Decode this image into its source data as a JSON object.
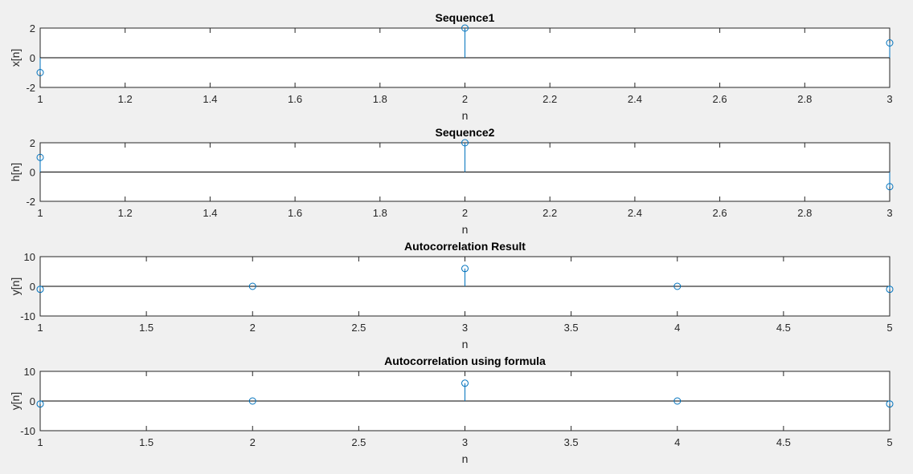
{
  "chart_data": [
    {
      "type": "stem",
      "title": "Sequence1",
      "xlabel": "n",
      "ylabel": "x[n]",
      "xlim": [
        1,
        3
      ],
      "ylim": [
        -2,
        2
      ],
      "xticks": [
        1,
        1.2,
        1.4,
        1.6,
        1.8,
        2,
        2.2,
        2.4,
        2.6,
        2.8,
        3
      ],
      "xtick_labels": [
        "1",
        "1.2",
        "1.4",
        "1.6",
        "1.8",
        "2",
        "2.2",
        "2.4",
        "2.6",
        "2.8",
        "3"
      ],
      "yticks": [
        -2,
        0,
        2
      ],
      "ytick_labels": [
        "-2",
        "0",
        "2"
      ],
      "x": [
        1,
        2,
        3
      ],
      "y": [
        -1,
        2,
        1
      ]
    },
    {
      "type": "stem",
      "title": "Sequence2",
      "xlabel": "n",
      "ylabel": "h[n]",
      "xlim": [
        1,
        3
      ],
      "ylim": [
        -2,
        2
      ],
      "xticks": [
        1,
        1.2,
        1.4,
        1.6,
        1.8,
        2,
        2.2,
        2.4,
        2.6,
        2.8,
        3
      ],
      "xtick_labels": [
        "1",
        "1.2",
        "1.4",
        "1.6",
        "1.8",
        "2",
        "2.2",
        "2.4",
        "2.6",
        "2.8",
        "3"
      ],
      "yticks": [
        -2,
        0,
        2
      ],
      "ytick_labels": [
        "-2",
        "0",
        "2"
      ],
      "x": [
        1,
        2,
        3
      ],
      "y": [
        1,
        2,
        -1
      ]
    },
    {
      "type": "stem",
      "title": "Autocorrelation Result",
      "xlabel": "n",
      "ylabel": "y[n]",
      "xlim": [
        1,
        5
      ],
      "ylim": [
        -10,
        10
      ],
      "xticks": [
        1,
        1.5,
        2,
        2.5,
        3,
        3.5,
        4,
        4.5,
        5
      ],
      "xtick_labels": [
        "1",
        "1.5",
        "2",
        "2.5",
        "3",
        "3.5",
        "4",
        "4.5",
        "5"
      ],
      "yticks": [
        -10,
        0,
        10
      ],
      "ytick_labels": [
        "-10",
        "0",
        "10"
      ],
      "x": [
        1,
        2,
        3,
        4,
        5
      ],
      "y": [
        -1,
        0,
        6,
        0,
        -1
      ]
    },
    {
      "type": "stem",
      "title": "Autocorrelation using formula",
      "xlabel": "n",
      "ylabel": "y[n]",
      "xlim": [
        1,
        5
      ],
      "ylim": [
        -10,
        10
      ],
      "xticks": [
        1,
        1.5,
        2,
        2.5,
        3,
        3.5,
        4,
        4.5,
        5
      ],
      "xtick_labels": [
        "1",
        "1.5",
        "2",
        "2.5",
        "3",
        "3.5",
        "4",
        "4.5",
        "5"
      ],
      "yticks": [
        -10,
        0,
        10
      ],
      "ytick_labels": [
        "-10",
        "0",
        "10"
      ],
      "x": [
        1,
        2,
        3,
        4,
        5
      ],
      "y": [
        -1,
        0,
        6,
        0,
        -1
      ]
    }
  ],
  "style": {
    "stem_color": "#0072bd",
    "axes_background": "#ffffff",
    "figure_background": "#f0f0f0"
  }
}
